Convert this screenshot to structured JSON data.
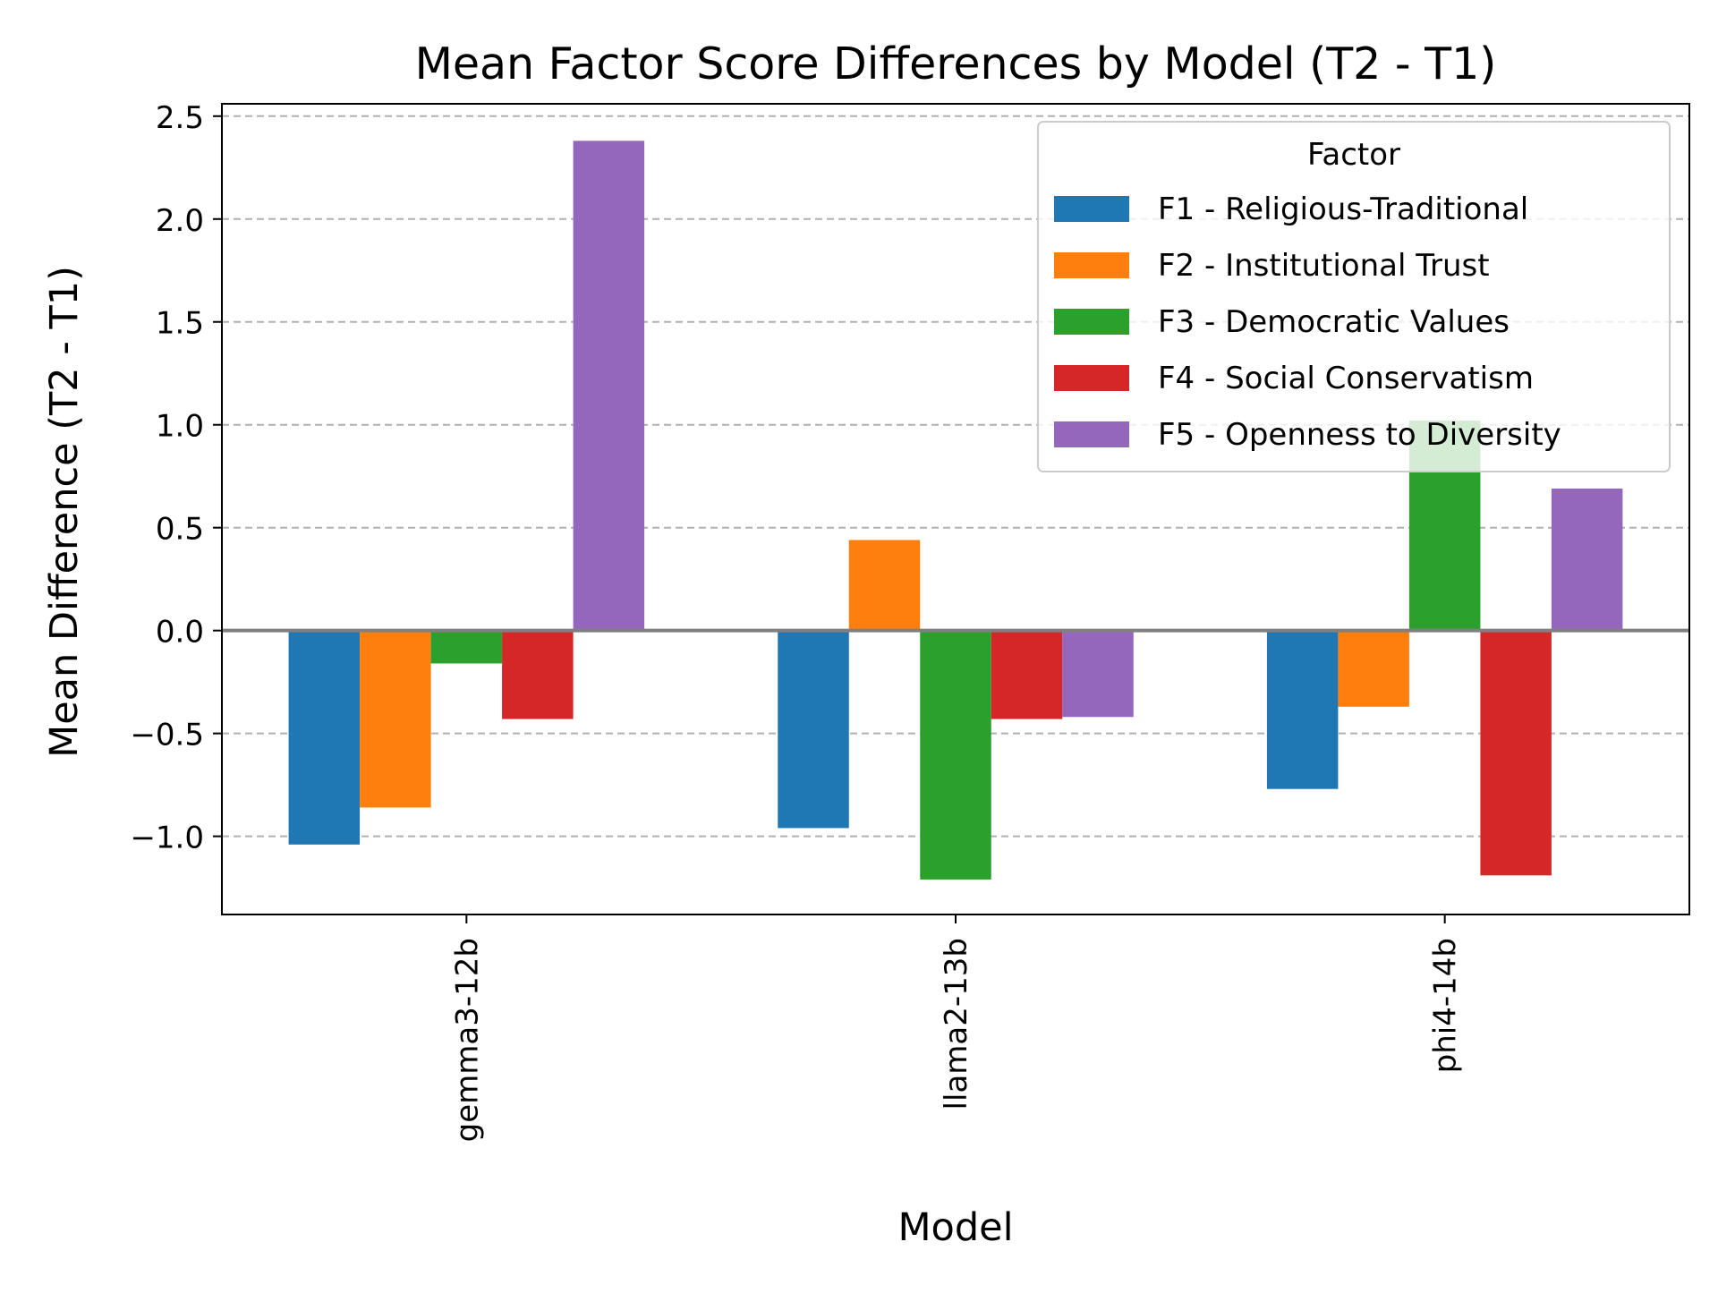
{
  "chart_data": {
    "type": "bar",
    "title": "Mean Factor Score Differences by Model (T2 - T1)",
    "xlabel": "Model",
    "ylabel": "Mean Difference (T2 - T1)",
    "categories": [
      "gemma3-12b",
      "llama2-13b",
      "phi4-14b"
    ],
    "ylim": [
      -1.38,
      2.56
    ],
    "yticks": [
      {
        "value": -1.0,
        "label": "−1.0"
      },
      {
        "value": -0.5,
        "label": "−0.5"
      },
      {
        "value": 0.0,
        "label": "0.0"
      },
      {
        "value": 0.5,
        "label": "0.5"
      },
      {
        "value": 1.0,
        "label": "1.0"
      },
      {
        "value": 1.5,
        "label": "1.5"
      },
      {
        "value": 2.0,
        "label": "2.0"
      },
      {
        "value": 2.5,
        "label": "2.5"
      }
    ],
    "grid": "y-dashed",
    "zero_line": true,
    "legend": {
      "title": "Factor",
      "placement": "top-right"
    },
    "series": [
      {
        "name": "F1 - Religious-Traditional",
        "color": "#1f77b4",
        "values": [
          -1.04,
          -0.96,
          -0.77
        ]
      },
      {
        "name": "F2 - Institutional Trust",
        "color": "#ff7f0e",
        "values": [
          -0.86,
          0.44,
          -0.37
        ]
      },
      {
        "name": "F3 - Democratic Values",
        "color": "#2ca02c",
        "values": [
          -0.16,
          -1.21,
          1.02
        ]
      },
      {
        "name": "F4 - Social Conservatism",
        "color": "#d62728",
        "values": [
          -0.43,
          -0.43,
          -1.19
        ]
      },
      {
        "name": "F5 - Openness to Diversity",
        "color": "#9467bd",
        "values": [
          2.38,
          -0.42,
          0.69
        ]
      }
    ]
  }
}
